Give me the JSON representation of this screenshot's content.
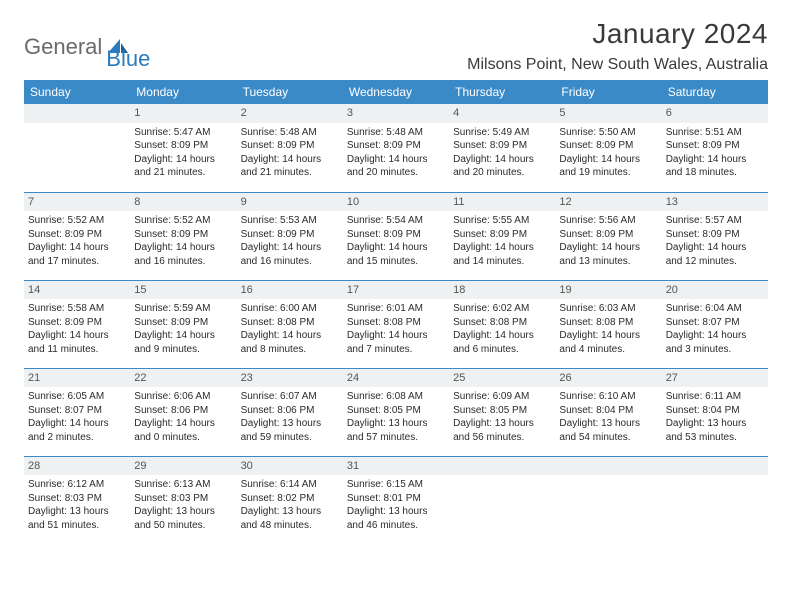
{
  "brand": {
    "general": "General",
    "blue": "Blue"
  },
  "title": "January 2024",
  "location": "Milsons Point, New South Wales, Australia",
  "colors": {
    "header_bg": "#3a8ac8",
    "header_fg": "#ffffff",
    "rule": "#3a8ac8",
    "daynum_bg": "#eef1f2",
    "text": "#2b2b2b"
  },
  "weekdays": [
    "Sunday",
    "Monday",
    "Tuesday",
    "Wednesday",
    "Thursday",
    "Friday",
    "Saturday"
  ],
  "weeks": [
    [
      {
        "day": "",
        "sunrise": "",
        "sunset": "",
        "daylight": ""
      },
      {
        "day": "1",
        "sunrise": "Sunrise: 5:47 AM",
        "sunset": "Sunset: 8:09 PM",
        "daylight": "Daylight: 14 hours and 21 minutes."
      },
      {
        "day": "2",
        "sunrise": "Sunrise: 5:48 AM",
        "sunset": "Sunset: 8:09 PM",
        "daylight": "Daylight: 14 hours and 21 minutes."
      },
      {
        "day": "3",
        "sunrise": "Sunrise: 5:48 AM",
        "sunset": "Sunset: 8:09 PM",
        "daylight": "Daylight: 14 hours and 20 minutes."
      },
      {
        "day": "4",
        "sunrise": "Sunrise: 5:49 AM",
        "sunset": "Sunset: 8:09 PM",
        "daylight": "Daylight: 14 hours and 20 minutes."
      },
      {
        "day": "5",
        "sunrise": "Sunrise: 5:50 AM",
        "sunset": "Sunset: 8:09 PM",
        "daylight": "Daylight: 14 hours and 19 minutes."
      },
      {
        "day": "6",
        "sunrise": "Sunrise: 5:51 AM",
        "sunset": "Sunset: 8:09 PM",
        "daylight": "Daylight: 14 hours and 18 minutes."
      }
    ],
    [
      {
        "day": "7",
        "sunrise": "Sunrise: 5:52 AM",
        "sunset": "Sunset: 8:09 PM",
        "daylight": "Daylight: 14 hours and 17 minutes."
      },
      {
        "day": "8",
        "sunrise": "Sunrise: 5:52 AM",
        "sunset": "Sunset: 8:09 PM",
        "daylight": "Daylight: 14 hours and 16 minutes."
      },
      {
        "day": "9",
        "sunrise": "Sunrise: 5:53 AM",
        "sunset": "Sunset: 8:09 PM",
        "daylight": "Daylight: 14 hours and 16 minutes."
      },
      {
        "day": "10",
        "sunrise": "Sunrise: 5:54 AM",
        "sunset": "Sunset: 8:09 PM",
        "daylight": "Daylight: 14 hours and 15 minutes."
      },
      {
        "day": "11",
        "sunrise": "Sunrise: 5:55 AM",
        "sunset": "Sunset: 8:09 PM",
        "daylight": "Daylight: 14 hours and 14 minutes."
      },
      {
        "day": "12",
        "sunrise": "Sunrise: 5:56 AM",
        "sunset": "Sunset: 8:09 PM",
        "daylight": "Daylight: 14 hours and 13 minutes."
      },
      {
        "day": "13",
        "sunrise": "Sunrise: 5:57 AM",
        "sunset": "Sunset: 8:09 PM",
        "daylight": "Daylight: 14 hours and 12 minutes."
      }
    ],
    [
      {
        "day": "14",
        "sunrise": "Sunrise: 5:58 AM",
        "sunset": "Sunset: 8:09 PM",
        "daylight": "Daylight: 14 hours and 11 minutes."
      },
      {
        "day": "15",
        "sunrise": "Sunrise: 5:59 AM",
        "sunset": "Sunset: 8:09 PM",
        "daylight": "Daylight: 14 hours and 9 minutes."
      },
      {
        "day": "16",
        "sunrise": "Sunrise: 6:00 AM",
        "sunset": "Sunset: 8:08 PM",
        "daylight": "Daylight: 14 hours and 8 minutes."
      },
      {
        "day": "17",
        "sunrise": "Sunrise: 6:01 AM",
        "sunset": "Sunset: 8:08 PM",
        "daylight": "Daylight: 14 hours and 7 minutes."
      },
      {
        "day": "18",
        "sunrise": "Sunrise: 6:02 AM",
        "sunset": "Sunset: 8:08 PM",
        "daylight": "Daylight: 14 hours and 6 minutes."
      },
      {
        "day": "19",
        "sunrise": "Sunrise: 6:03 AM",
        "sunset": "Sunset: 8:08 PM",
        "daylight": "Daylight: 14 hours and 4 minutes."
      },
      {
        "day": "20",
        "sunrise": "Sunrise: 6:04 AM",
        "sunset": "Sunset: 8:07 PM",
        "daylight": "Daylight: 14 hours and 3 minutes."
      }
    ],
    [
      {
        "day": "21",
        "sunrise": "Sunrise: 6:05 AM",
        "sunset": "Sunset: 8:07 PM",
        "daylight": "Daylight: 14 hours and 2 minutes."
      },
      {
        "day": "22",
        "sunrise": "Sunrise: 6:06 AM",
        "sunset": "Sunset: 8:06 PM",
        "daylight": "Daylight: 14 hours and 0 minutes."
      },
      {
        "day": "23",
        "sunrise": "Sunrise: 6:07 AM",
        "sunset": "Sunset: 8:06 PM",
        "daylight": "Daylight: 13 hours and 59 minutes."
      },
      {
        "day": "24",
        "sunrise": "Sunrise: 6:08 AM",
        "sunset": "Sunset: 8:05 PM",
        "daylight": "Daylight: 13 hours and 57 minutes."
      },
      {
        "day": "25",
        "sunrise": "Sunrise: 6:09 AM",
        "sunset": "Sunset: 8:05 PM",
        "daylight": "Daylight: 13 hours and 56 minutes."
      },
      {
        "day": "26",
        "sunrise": "Sunrise: 6:10 AM",
        "sunset": "Sunset: 8:04 PM",
        "daylight": "Daylight: 13 hours and 54 minutes."
      },
      {
        "day": "27",
        "sunrise": "Sunrise: 6:11 AM",
        "sunset": "Sunset: 8:04 PM",
        "daylight": "Daylight: 13 hours and 53 minutes."
      }
    ],
    [
      {
        "day": "28",
        "sunrise": "Sunrise: 6:12 AM",
        "sunset": "Sunset: 8:03 PM",
        "daylight": "Daylight: 13 hours and 51 minutes."
      },
      {
        "day": "29",
        "sunrise": "Sunrise: 6:13 AM",
        "sunset": "Sunset: 8:03 PM",
        "daylight": "Daylight: 13 hours and 50 minutes."
      },
      {
        "day": "30",
        "sunrise": "Sunrise: 6:14 AM",
        "sunset": "Sunset: 8:02 PM",
        "daylight": "Daylight: 13 hours and 48 minutes."
      },
      {
        "day": "31",
        "sunrise": "Sunrise: 6:15 AM",
        "sunset": "Sunset: 8:01 PM",
        "daylight": "Daylight: 13 hours and 46 minutes."
      },
      {
        "day": "",
        "sunrise": "",
        "sunset": "",
        "daylight": ""
      },
      {
        "day": "",
        "sunrise": "",
        "sunset": "",
        "daylight": ""
      },
      {
        "day": "",
        "sunrise": "",
        "sunset": "",
        "daylight": ""
      }
    ]
  ]
}
